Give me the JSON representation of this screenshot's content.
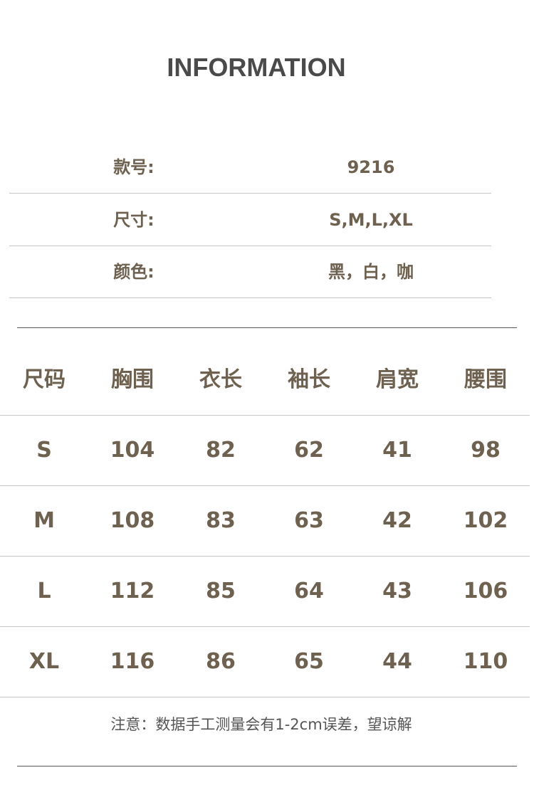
{
  "title": "INFORMATION",
  "info": [
    {
      "label": "款号:",
      "value": "9216"
    },
    {
      "label": "尺寸:",
      "value": "S,M,L,XL"
    },
    {
      "label": "颜色:",
      "value": "黑，白，咖"
    }
  ],
  "size_table": {
    "headers": [
      "尺码",
      "胸围",
      "衣长",
      "袖长",
      "肩宽",
      "腰围"
    ],
    "rows": [
      [
        "S",
        "104",
        "82",
        "62",
        "41",
        "98"
      ],
      [
        "M",
        "108",
        "83",
        "63",
        "42",
        "102"
      ],
      [
        "L",
        "112",
        "85",
        "64",
        "43",
        "106"
      ],
      [
        "XL",
        "116",
        "86",
        "65",
        "44",
        "110"
      ]
    ]
  },
  "note": "注意：数据手工测量会有1-2cm误差，望谅解",
  "colors": {
    "text": "#6e6150",
    "title": "#4a4a4a"
  }
}
